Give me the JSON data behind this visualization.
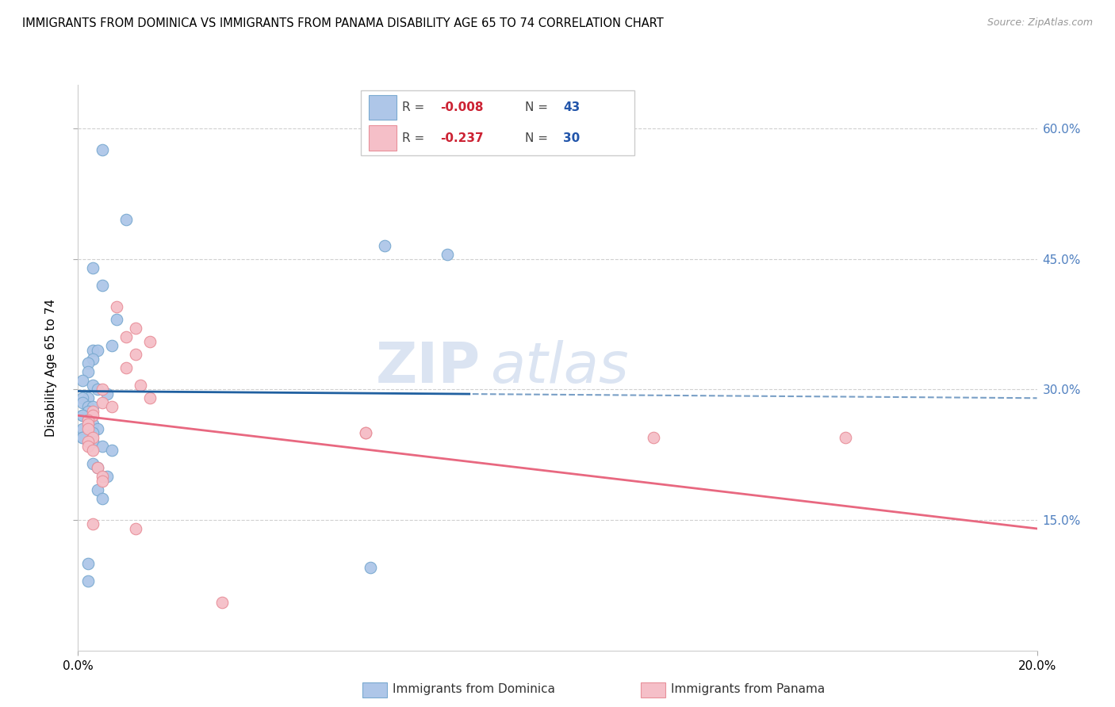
{
  "title": "IMMIGRANTS FROM DOMINICA VS IMMIGRANTS FROM PANAMA DISABILITY AGE 65 TO 74 CORRELATION CHART",
  "source": "Source: ZipAtlas.com",
  "ylabel": "Disability Age 65 to 74",
  "xlim": [
    0.0,
    0.2
  ],
  "ylim": [
    0.0,
    0.65
  ],
  "watermark_zip": "ZIP",
  "watermark_atlas": "atlas",
  "dominica_color": "#aec6e8",
  "dominica_edge": "#7aaad0",
  "panama_color": "#f5bfc8",
  "panama_edge": "#e8909a",
  "dominica_line_color": "#2060a0",
  "panama_line_color": "#e86880",
  "dominica_R": "-0.008",
  "dominica_N": "43",
  "panama_R": "-0.237",
  "panama_N": "30",
  "right_tick_color": "#5080c0",
  "dominica_x": [
    0.005,
    0.01,
    0.003,
    0.005,
    0.008,
    0.007,
    0.003,
    0.004,
    0.003,
    0.002,
    0.002,
    0.001,
    0.003,
    0.004,
    0.006,
    0.002,
    0.001,
    0.001,
    0.002,
    0.003,
    0.002,
    0.001,
    0.001,
    0.002,
    0.003,
    0.004,
    0.001,
    0.003,
    0.001,
    0.001,
    0.003,
    0.005,
    0.007,
    0.064,
    0.077,
    0.003,
    0.004,
    0.006,
    0.004,
    0.005,
    0.061,
    0.002,
    0.002
  ],
  "dominica_y": [
    0.575,
    0.495,
    0.44,
    0.42,
    0.38,
    0.35,
    0.345,
    0.345,
    0.335,
    0.33,
    0.32,
    0.31,
    0.305,
    0.3,
    0.295,
    0.29,
    0.29,
    0.285,
    0.28,
    0.28,
    0.275,
    0.27,
    0.27,
    0.265,
    0.26,
    0.255,
    0.255,
    0.25,
    0.245,
    0.245,
    0.24,
    0.235,
    0.23,
    0.465,
    0.455,
    0.215,
    0.21,
    0.2,
    0.185,
    0.175,
    0.095,
    0.1,
    0.08
  ],
  "panama_x": [
    0.008,
    0.012,
    0.01,
    0.015,
    0.012,
    0.01,
    0.013,
    0.015,
    0.005,
    0.007,
    0.003,
    0.003,
    0.005,
    0.002,
    0.002,
    0.002,
    0.003,
    0.002,
    0.002,
    0.003,
    0.004,
    0.005,
    0.06,
    0.06,
    0.005,
    0.003,
    0.012,
    0.12,
    0.16,
    0.03
  ],
  "panama_y": [
    0.395,
    0.37,
    0.36,
    0.355,
    0.34,
    0.325,
    0.305,
    0.29,
    0.285,
    0.28,
    0.275,
    0.27,
    0.3,
    0.265,
    0.26,
    0.255,
    0.245,
    0.24,
    0.235,
    0.23,
    0.21,
    0.2,
    0.25,
    0.25,
    0.195,
    0.145,
    0.14,
    0.245,
    0.245,
    0.055
  ],
  "dominica_line_intercept": 0.298,
  "dominica_line_slope": -0.04,
  "panama_line_intercept": 0.27,
  "panama_line_slope": -0.65
}
